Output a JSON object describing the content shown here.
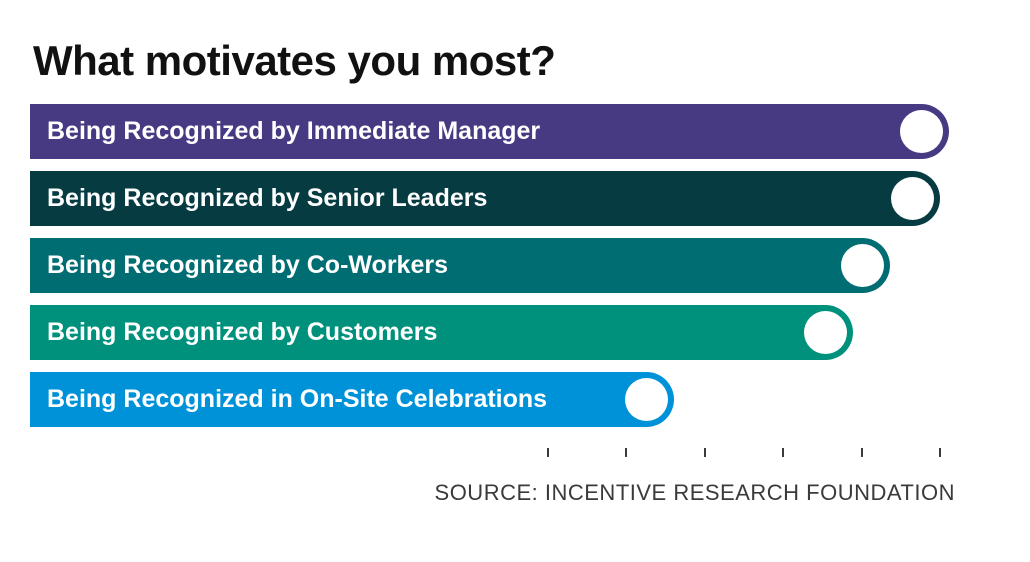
{
  "page": {
    "background": "#ffffff"
  },
  "chart": {
    "title": "What motivates you most?",
    "source": "SOURCE: INCENTIVE RESEARCH FOUNDATION"
  },
  "chart_data": {
    "type": "bar",
    "orientation": "horizontal",
    "title": "What motivates you most?",
    "categories": [
      "Being Recognized by Immediate Manager",
      "Being Recognized by Senior Leaders",
      "Being Recognized by Co-Workers",
      "Being Recognized by Customers",
      "Being Recognized in On-Site Celebrations"
    ],
    "values_pct_of_max": [
      100,
      99,
      93.6,
      89.5,
      70.1
    ],
    "value_labels_shown": false,
    "bar_colors": [
      "#473a82",
      "#053b41",
      "#006d73",
      "#00917c",
      "#0092d8"
    ],
    "bar_text_color": "#ffffff",
    "endpoint_marker": "white-circle",
    "x_axis": {
      "tick_count": 6,
      "tick_labels": [],
      "tick_labels_shown": false,
      "tick_color": "#3a3a3a"
    },
    "legend": "none",
    "grid": "off",
    "source_note": "SOURCE: INCENTIVE RESEARCH FOUNDATION"
  }
}
